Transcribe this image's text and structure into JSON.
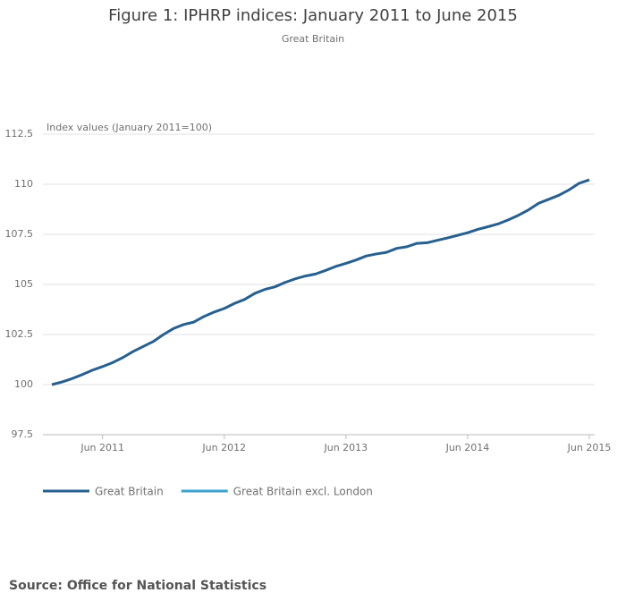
{
  "chart_data": {
    "type": "line",
    "title": "Figure 1: IPHRP indices: January 2011 to June 2015",
    "subtitle": "Great Britain",
    "y_label": "Index values (January 2011=100)",
    "source": "Source: Office for National Statistics",
    "categories": [
      null,
      null,
      null,
      null,
      null,
      "Jun 2011",
      null,
      null,
      null,
      null,
      null,
      null,
      null,
      null,
      null,
      null,
      null,
      "Jun 2012",
      null,
      null,
      null,
      null,
      null,
      null,
      null,
      null,
      null,
      null,
      null,
      "Jun 2013",
      null,
      null,
      null,
      null,
      null,
      null,
      null,
      null,
      null,
      null,
      null,
      "Jun 2014",
      null,
      null,
      null,
      null,
      null,
      null,
      null,
      null,
      null,
      null,
      null,
      "Jun 2015"
    ],
    "series": [
      {
        "name": "Great Britain",
        "color": "#27608f",
        "values": [
          100.0,
          100.13,
          100.3,
          100.5,
          100.72,
          100.9,
          101.1,
          101.35,
          101.65,
          101.9,
          102.15,
          102.5,
          102.8,
          103.0,
          103.12,
          103.4,
          103.62,
          103.8,
          104.05,
          104.25,
          104.55,
          104.75,
          104.88,
          105.1,
          105.28,
          105.42,
          105.52,
          105.7,
          105.9,
          106.05,
          106.22,
          106.42,
          106.52,
          106.6,
          106.8,
          106.88,
          107.05,
          107.08,
          107.2,
          107.32,
          107.45,
          107.58,
          107.75,
          107.88,
          108.02,
          108.22,
          108.45,
          108.72,
          109.05,
          109.25,
          109.45,
          109.72,
          110.05,
          110.22
        ]
      },
      {
        "name": "Great Britain excl. London",
        "color": "#3da1cf",
        "values": [
          null,
          null,
          null,
          null,
          null,
          null,
          null,
          null,
          null,
          null,
          null,
          null,
          null,
          null,
          null,
          null,
          null,
          null,
          null,
          null,
          null,
          null,
          null,
          null,
          null,
          null,
          null,
          null,
          null,
          null,
          null,
          null,
          null,
          null,
          null,
          null,
          null,
          null,
          null,
          null,
          null,
          null,
          null,
          null,
          null,
          null,
          null,
          null,
          null,
          null,
          null,
          null,
          null,
          null
        ]
      }
    ],
    "ylim": [
      97.5,
      112.5
    ],
    "yticks": [
      97.5,
      100,
      102.5,
      105,
      107.5,
      110,
      112.5
    ],
    "grid": true
  }
}
